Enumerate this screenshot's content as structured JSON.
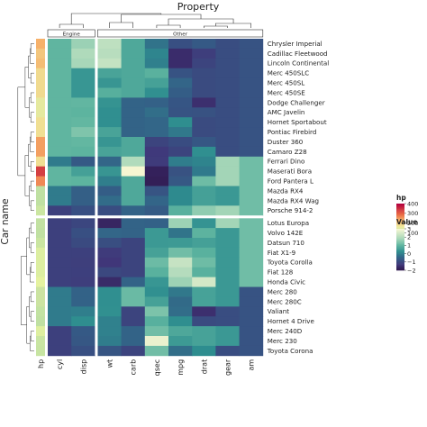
{
  "chart_data": {
    "type": "heatmap",
    "title": "Property",
    "ylabel": "Car name",
    "column_groups": [
      {
        "label": "Engine",
        "columns": [
          "cyl",
          "disp"
        ]
      },
      {
        "label": "Other",
        "columns": [
          "wt",
          "carb",
          "qsec",
          "mpg",
          "drat",
          "gear",
          "am"
        ]
      }
    ],
    "columns": [
      "cyl",
      "disp",
      "wt",
      "carb",
      "qsec",
      "mpg",
      "drat",
      "gear",
      "am"
    ],
    "hp_column_label": "hp",
    "rows": [
      "Chrysler Imperial",
      "Cadillac Fleetwood",
      "Lincoln Continental",
      "Merc 450SLC",
      "Merc 450SL",
      "Merc 450SE",
      "Dodge Challenger",
      "AMC Javelin",
      "Hornet Sportabout",
      "Pontiac Firebird",
      "Duster 360",
      "Camaro Z28",
      "Ferrari Dino",
      "Maserati Bora",
      "Ford Pantera L",
      "Mazda RX4",
      "Mazda RX4 Wag",
      "Porsche 914-2",
      "Lotus Europa",
      "Volvo 142E",
      "Datsun 710",
      "Fiat X1-9",
      "Toyota Corolla",
      "Fiat 128",
      "Honda Civic",
      "Merc 280",
      "Merc 280C",
      "Valiant",
      "Hornet 4 Drive",
      "Merc 240D",
      "Merc 230",
      "Toyota Corona"
    ],
    "row_split_after": 18,
    "column_split_after": 2,
    "hp": [
      230,
      205,
      215,
      180,
      180,
      180,
      150,
      150,
      175,
      175,
      245,
      245,
      175,
      335,
      264,
      110,
      110,
      91,
      113,
      109,
      93,
      66,
      65,
      66,
      52,
      123,
      123,
      105,
      110,
      62,
      95,
      97
    ],
    "values": [
      [
        1.01,
        1.69,
        2.17,
        0.74,
        -0.24,
        -0.89,
        -0.69,
        -0.93,
        -0.81
      ],
      [
        1.01,
        1.95,
        2.08,
        0.74,
        0.07,
        -1.61,
        -1.25,
        -0.93,
        -0.81
      ],
      [
        1.01,
        1.85,
        2.26,
        0.74,
        -0.02,
        -1.61,
        -1.12,
        -0.93,
        -0.81
      ],
      [
        1.01,
        0.37,
        0.64,
        0.74,
        0.92,
        -0.81,
        -0.98,
        -0.93,
        -0.81
      ],
      [
        1.01,
        0.37,
        0.36,
        0.74,
        0.59,
        -0.46,
        -0.98,
        -0.93,
        -0.81
      ],
      [
        1.01,
        0.37,
        0.87,
        0.74,
        0.25,
        -0.61,
        -0.98,
        -0.93,
        -0.81
      ],
      [
        1.01,
        1.03,
        0.31,
        -0.5,
        -0.54,
        -0.76,
        -1.56,
        -0.93,
        -0.81
      ],
      [
        1.01,
        0.97,
        0.23,
        -0.5,
        -0.31,
        -0.81,
        -0.84,
        -0.93,
        -0.81
      ],
      [
        1.01,
        1.04,
        0.23,
        -0.5,
        -0.45,
        0.22,
        -0.97,
        -0.93,
        -0.81
      ],
      [
        1.01,
        1.37,
        0.64,
        -0.5,
        -0.45,
        -0.15,
        -0.97,
        -0.93,
        -0.81
      ],
      [
        1.01,
        1.04,
        0.36,
        0.74,
        -1.12,
        -0.96,
        -0.72,
        -0.93,
        -0.81
      ],
      [
        1.01,
        0.97,
        0.64,
        0.74,
        -1.36,
        -1.13,
        0.24,
        -0.93,
        -0.81
      ],
      [
        -0.1,
        -0.69,
        -0.45,
        1.98,
        -1.31,
        -0.06,
        0.05,
        1.78,
        1.19
      ],
      [
        1.01,
        0.57,
        0.36,
        3.21,
        -1.82,
        -0.84,
        -0.11,
        1.78,
        1.19
      ],
      [
        1.01,
        0.97,
        -0.05,
        0.74,
        -1.87,
        -0.71,
        1.17,
        1.78,
        1.19
      ],
      [
        -0.1,
        -0.57,
        -0.61,
        0.74,
        -0.78,
        0.15,
        0.57,
        0.42,
        1.19
      ],
      [
        -0.1,
        -0.57,
        -0.35,
        0.74,
        -0.46,
        0.15,
        0.57,
        0.42,
        1.19
      ],
      [
        -1.22,
        -0.89,
        -0.93,
        -0.5,
        -0.64,
        0.9,
        1.56,
        1.78,
        1.19
      ],
      [
        -1.22,
        -1.09,
        -1.74,
        -0.5,
        -0.53,
        1.71,
        0.32,
        1.78,
        1.19
      ],
      [
        -1.22,
        -0.89,
        -0.45,
        -0.5,
        0.43,
        -0.22,
        0.96,
        0.42,
        1.19
      ],
      [
        -1.22,
        -0.99,
        -0.92,
        -1.12,
        0.43,
        0.45,
        0.57,
        0.42,
        1.19
      ],
      [
        -1.22,
        -1.22,
        -1.31,
        -1.12,
        0.59,
        1.2,
        0.91,
        0.42,
        1.19
      ],
      [
        -1.22,
        -1.24,
        -1.41,
        -1.12,
        1.15,
        2.29,
        1.17,
        0.42,
        1.19
      ],
      [
        -1.22,
        -1.23,
        -1.04,
        -1.12,
        0.91,
        2.04,
        0.91,
        0.42,
        1.19
      ],
      [
        -1.22,
        -1.25,
        -1.64,
        -0.5,
        0.37,
        1.71,
        2.49,
        0.42,
        1.19
      ],
      [
        -0.1,
        -0.51,
        0.23,
        1.12,
        0.25,
        -0.15,
        0.61,
        0.42,
        -0.81
      ],
      [
        -0.1,
        -0.51,
        0.23,
        1.12,
        0.59,
        -0.38,
        0.61,
        0.42,
        -0.81
      ],
      [
        -0.1,
        -0.05,
        0.25,
        -1.12,
        1.33,
        -0.33,
        -1.56,
        -0.93,
        -0.81
      ],
      [
        -0.1,
        0.22,
        -0.0,
        -1.12,
        0.89,
        0.22,
        -0.98,
        -0.93,
        -0.81
      ],
      [
        -1.22,
        -0.68,
        -0.0,
        -0.5,
        1.2,
        0.72,
        0.61,
        0.42,
        -0.81
      ],
      [
        -1.22,
        -0.73,
        -0.07,
        -0.5,
        2.83,
        0.45,
        0.61,
        0.42,
        -0.81
      ],
      [
        -1.22,
        -0.89,
        -0.77,
        -1.12,
        1.2,
        -0.31,
        0.2,
        -0.93,
        -0.81
      ]
    ],
    "hp_legend": {
      "title": "hp",
      "ticks": [
        100,
        200,
        300,
        400
      ],
      "range": [
        50,
        400
      ]
    },
    "value_legend": {
      "title": "Value",
      "ticks": [
        3,
        2,
        1,
        0,
        -1,
        -2
      ],
      "tick_labels": [
        "3",
        "2",
        "1",
        "0",
        "−1",
        "−2"
      ],
      "range": [
        -2,
        3
      ]
    }
  }
}
